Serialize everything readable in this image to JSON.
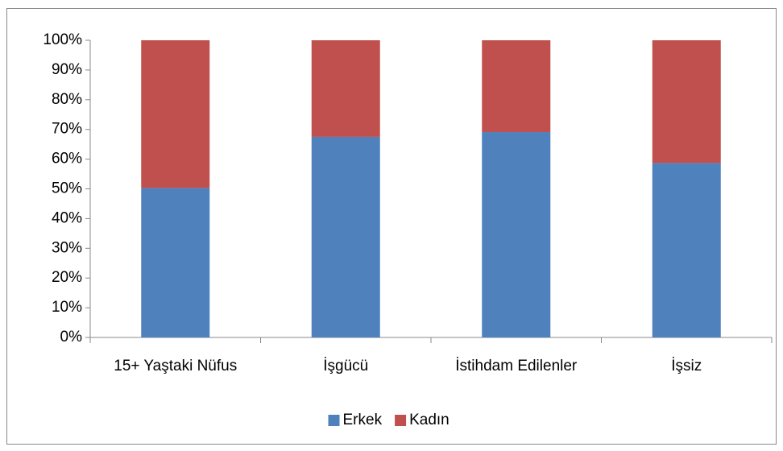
{
  "chart_data": {
    "type": "stacked_bar",
    "categories": [
      "15+ Yaştaki Nüfus",
      "İşgücü",
      "İstihdam Edilenler",
      "İşsiz"
    ],
    "series": [
      {
        "name": "Erkek",
        "color": "#4f81bd",
        "values": [
          50.3,
          67.5,
          69.1,
          58.7
        ]
      },
      {
        "name": "Kadın",
        "color": "#c0504d",
        "values": [
          49.7,
          32.5,
          30.9,
          41.3
        ]
      }
    ],
    "ylim": [
      0,
      100
    ],
    "yticks": [
      {
        "value": 0,
        "label": "0%"
      },
      {
        "value": 10,
        "label": "10%"
      },
      {
        "value": 20,
        "label": "20%"
      },
      {
        "value": 30,
        "label": "30%"
      },
      {
        "value": 40,
        "label": "40%"
      },
      {
        "value": 50,
        "label": "50%"
      },
      {
        "value": 60,
        "label": "60%"
      },
      {
        "value": 70,
        "label": "70%"
      },
      {
        "value": 80,
        "label": "80%"
      },
      {
        "value": 90,
        "label": "90%"
      },
      {
        "value": 100,
        "label": "100%"
      }
    ],
    "grid": false,
    "legend": "bottom"
  }
}
